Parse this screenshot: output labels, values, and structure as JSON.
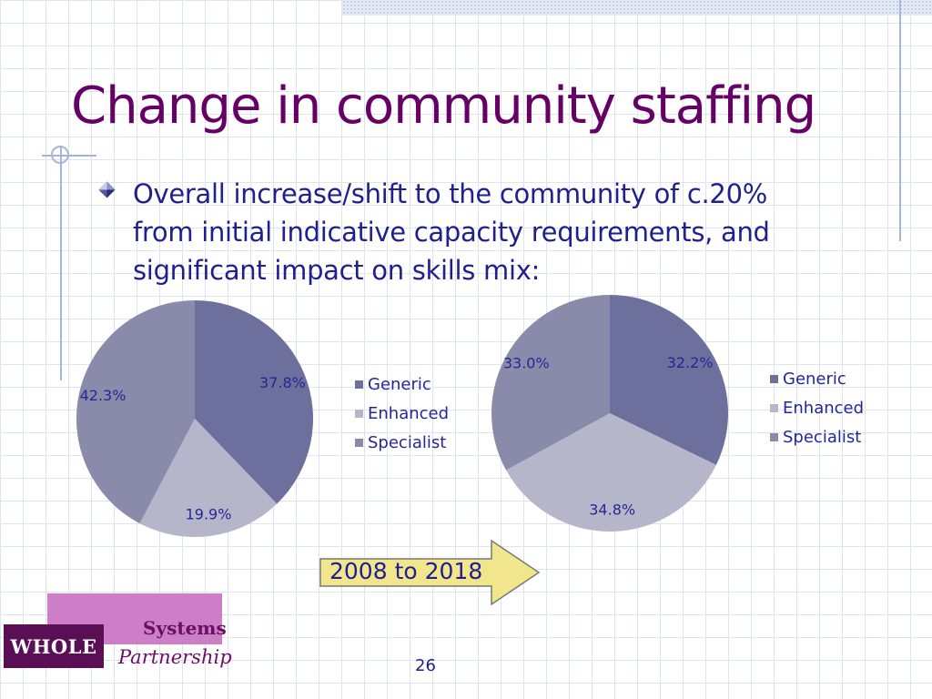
{
  "slide": {
    "title": "Change in community staffing",
    "bullet": "Overall increase/shift to the community of c.20% from initial indicative capacity requirements, and significant impact on skills mix:",
    "arrow_label": "2008 to 2018",
    "page_number": "26",
    "logo": {
      "systems": "Systems",
      "whole": "WHOLE",
      "partnership": "Partnership"
    }
  },
  "colors": {
    "title": "#660066",
    "text": "#1f1f8f",
    "generic": "#6d6f9c",
    "enhanced": "#b6b6cb",
    "specialist": "#8a8aaa",
    "arrow_fill": "#f2e68c"
  },
  "chart_data": [
    {
      "type": "pie",
      "categories": [
        "Generic",
        "Enhanced",
        "Specialist"
      ],
      "values": [
        37.8,
        19.9,
        42.3
      ],
      "labels": [
        "37.8%",
        "19.9%",
        "42.3%"
      ],
      "legend": "right"
    },
    {
      "type": "pie",
      "categories": [
        "Generic",
        "Enhanced",
        "Specialist"
      ],
      "values": [
        32.2,
        34.8,
        33.0
      ],
      "labels": [
        "32.2%",
        "34.8%",
        "33.0%"
      ],
      "legend": "right"
    }
  ]
}
